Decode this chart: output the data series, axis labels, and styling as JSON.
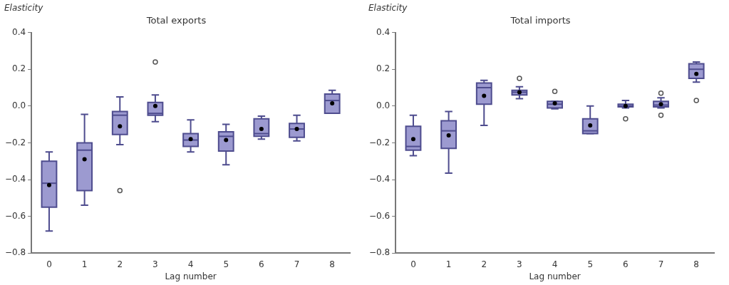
{
  "chart_data": [
    {
      "type": "box",
      "title": "Total exports",
      "xlabel": "Lag number",
      "ylabel": "Elasticity",
      "categories": [
        "0",
        "1",
        "2",
        "3",
        "4",
        "5",
        "6",
        "7",
        "8"
      ],
      "color": "#9c9ad0",
      "ylim": [
        -0.8,
        0.4
      ],
      "yticks": [
        {
          "value": -0.8,
          "label": "−0.8"
        },
        {
          "value": -0.6,
          "label": "−0.6"
        },
        {
          "value": -0.4,
          "label": "−0.4"
        },
        {
          "value": -0.2,
          "label": "−0.2"
        },
        {
          "value": 0,
          "label": "0.0"
        },
        {
          "value": 0.2,
          "label": "0.2"
        },
        {
          "value": 0.4,
          "label": "0.4"
        }
      ],
      "grid": false,
      "boxes": [
        {
          "low": -0.68,
          "q1": -0.55,
          "median": -0.42,
          "q3": -0.3,
          "high": -0.25,
          "mean": -0.43
        },
        {
          "low": -0.54,
          "q1": -0.46,
          "median": -0.24,
          "q3": -0.2,
          "high": -0.045,
          "mean": -0.29
        },
        {
          "low": -0.21,
          "q1": -0.155,
          "median": -0.05,
          "q3": -0.03,
          "high": 0.05,
          "mean": -0.11,
          "outliers": [
            -0.46
          ]
        },
        {
          "low": -0.085,
          "q1": -0.05,
          "median": -0.04,
          "q3": 0.02,
          "high": 0.06,
          "mean": 0,
          "outliers": [
            0.24
          ]
        },
        {
          "low": -0.25,
          "q1": -0.22,
          "median": -0.185,
          "q3": -0.15,
          "high": -0.075,
          "mean": -0.18
        },
        {
          "low": -0.32,
          "q1": -0.245,
          "median": -0.165,
          "q3": -0.14,
          "high": -0.1,
          "mean": -0.185
        },
        {
          "low": -0.18,
          "q1": -0.165,
          "median": -0.15,
          "q3": -0.07,
          "high": -0.055,
          "mean": -0.125
        },
        {
          "low": -0.19,
          "q1": -0.17,
          "median": -0.125,
          "q3": -0.095,
          "high": -0.05,
          "mean": -0.125
        },
        {
          "low": -0.04,
          "q1": -0.04,
          "median": 0.03,
          "q3": 0.065,
          "high": 0.085,
          "mean": 0.015
        }
      ]
    },
    {
      "type": "box",
      "title": "Total imports",
      "xlabel": "Lag number",
      "ylabel": "Elasticity",
      "categories": [
        "0",
        "1",
        "2",
        "3",
        "4",
        "5",
        "6",
        "7",
        "8"
      ],
      "color": "#9c9ad0",
      "ylim": [
        -0.8,
        0.4
      ],
      "yticks": [
        {
          "value": -0.8,
          "label": "−0.8"
        },
        {
          "value": -0.6,
          "label": "−0.6"
        },
        {
          "value": -0.4,
          "label": "−0.4"
        },
        {
          "value": -0.2,
          "label": "−0.2"
        },
        {
          "value": 0,
          "label": "0.0"
        },
        {
          "value": 0.2,
          "label": "0.2"
        },
        {
          "value": 0.4,
          "label": "0.4"
        }
      ],
      "grid": false,
      "boxes": [
        {
          "low": -0.27,
          "q1": -0.24,
          "median": -0.22,
          "q3": -0.11,
          "high": -0.05,
          "mean": -0.18
        },
        {
          "low": -0.365,
          "q1": -0.23,
          "median": -0.135,
          "q3": -0.08,
          "high": -0.03,
          "mean": -0.16
        },
        {
          "low": -0.105,
          "q1": 0.01,
          "median": 0.1,
          "q3": 0.125,
          "high": 0.14,
          "mean": 0.055
        },
        {
          "low": 0.04,
          "q1": 0.06,
          "median": 0.075,
          "q3": 0.085,
          "high": 0.105,
          "mean": 0.075,
          "outliers": [
            0.15
          ]
        },
        {
          "low": -0.015,
          "q1": -0.01,
          "median": 0.01,
          "q3": 0.025,
          "high": 0.025,
          "mean": 0.015,
          "outliers": [
            0.08
          ]
        },
        {
          "low": -0.15,
          "q1": -0.15,
          "median": -0.135,
          "q3": -0.07,
          "high": 0,
          "mean": -0.105
        },
        {
          "low": -0.01,
          "q1": -0.005,
          "median": 0,
          "q3": 0.01,
          "high": 0.03,
          "mean": 0,
          "outliers": [
            -0.07
          ]
        },
        {
          "low": -0.01,
          "q1": -0.005,
          "median": 0.005,
          "q3": 0.025,
          "high": 0.045,
          "mean": 0.01,
          "outliers": [
            0.07,
            -0.05
          ]
        },
        {
          "low": 0.13,
          "q1": 0.15,
          "median": 0.2,
          "q3": 0.23,
          "high": 0.24,
          "mean": 0.175,
          "outliers": [
            0.03
          ]
        }
      ]
    }
  ]
}
